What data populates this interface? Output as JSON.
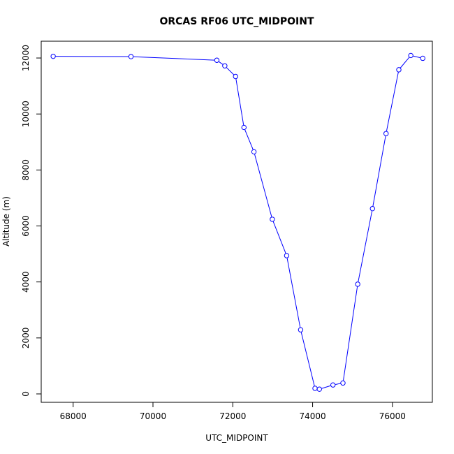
{
  "chart_data": {
    "type": "line",
    "title": "ORCAS RF06 UTC_MIDPOINT",
    "xlabel": "UTC_MIDPOINT",
    "ylabel": "Altitude (m)",
    "xlim": [
      67200,
      77000
    ],
    "ylim": [
      -300,
      12600
    ],
    "x_ticks": [
      68000,
      70000,
      72000,
      74000,
      76000
    ],
    "y_ticks": [
      0,
      2000,
      4000,
      6000,
      8000,
      10000,
      12000
    ],
    "grid": false,
    "series": [
      {
        "color": "#0000ff",
        "marker": "circle-open",
        "points": [
          {
            "x": 67500,
            "y": 12060
          },
          {
            "x": 69450,
            "y": 12050
          },
          {
            "x": 71600,
            "y": 11920
          },
          {
            "x": 71800,
            "y": 11720
          },
          {
            "x": 72070,
            "y": 11340
          },
          {
            "x": 72280,
            "y": 9520
          },
          {
            "x": 72530,
            "y": 8650
          },
          {
            "x": 72990,
            "y": 6240
          },
          {
            "x": 73350,
            "y": 4940
          },
          {
            "x": 73700,
            "y": 2290
          },
          {
            "x": 74060,
            "y": 200
          },
          {
            "x": 74170,
            "y": 170
          },
          {
            "x": 74510,
            "y": 320
          },
          {
            "x": 74760,
            "y": 390
          },
          {
            "x": 75130,
            "y": 3920
          },
          {
            "x": 75500,
            "y": 6620
          },
          {
            "x": 75840,
            "y": 9300
          },
          {
            "x": 76160,
            "y": 11580
          },
          {
            "x": 76460,
            "y": 12090
          },
          {
            "x": 76760,
            "y": 11990
          }
        ]
      }
    ]
  }
}
